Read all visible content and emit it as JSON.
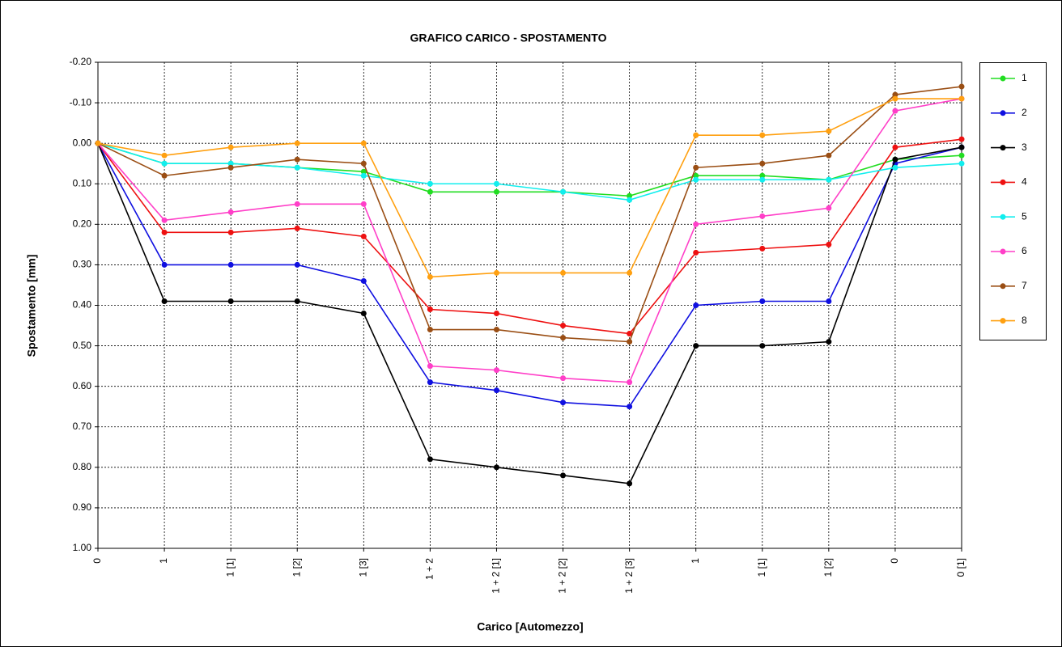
{
  "chart_data": {
    "type": "line",
    "title": "GRAFICO CARICO - SPOSTAMENTO",
    "x_label": "Carico [Automezzo]",
    "y_label": "Spostamento [mm]",
    "categories": [
      "0",
      "1",
      "1 [1]",
      "1 [2]",
      "1 [3]",
      "1 + 2",
      "1 + 2 [1]",
      "1 + 2 [2]",
      "1 + 2 [3]",
      "1",
      "1 [1]",
      "1 [2]",
      "0",
      "0 [1]"
    ],
    "ylim": [
      -0.2,
      1
    ],
    "y_inverted": true,
    "yticks": [
      {
        "value": -0.2,
        "label": "-0.20"
      },
      {
        "value": -0.1,
        "label": "-0.10"
      },
      {
        "value": 0,
        "label": "0.00"
      },
      {
        "value": 0.1,
        "label": "0.10"
      },
      {
        "value": 0.2,
        "label": "0.20"
      },
      {
        "value": 0.3,
        "label": "0.30"
      },
      {
        "value": 0.4,
        "label": "0.40"
      },
      {
        "value": 0.5,
        "label": "0.50"
      },
      {
        "value": 0.6,
        "label": "0.60"
      },
      {
        "value": 0.7,
        "label": "0.70"
      },
      {
        "value": 0.8,
        "label": "0.80"
      },
      {
        "value": 0.9,
        "label": "0.90"
      },
      {
        "value": 1,
        "label": "1.00"
      }
    ],
    "grid": true,
    "legend": "right",
    "series": [
      {
        "name": "1",
        "color": "#22dd22",
        "values": [
          0,
          0.05,
          0.05,
          0.06,
          0.07,
          0.12,
          0.12,
          0.12,
          0.13,
          0.08,
          0.08,
          0.09,
          0.04,
          0.03
        ]
      },
      {
        "name": "2",
        "color": "#1010e0",
        "values": [
          0,
          0.3,
          0.3,
          0.3,
          0.34,
          0.59,
          0.61,
          0.64,
          0.65,
          0.4,
          0.39,
          0.39,
          0.05,
          0.01
        ]
      },
      {
        "name": "3",
        "color": "#000000",
        "values": [
          0,
          0.39,
          0.39,
          0.39,
          0.42,
          0.78,
          0.8,
          0.82,
          0.84,
          0.5,
          0.5,
          0.49,
          0.04,
          0.01
        ]
      },
      {
        "name": "4",
        "color": "#ee1111",
        "values": [
          0,
          0.22,
          0.22,
          0.21,
          0.23,
          0.41,
          0.42,
          0.45,
          0.47,
          0.27,
          0.26,
          0.25,
          0.01,
          -0.01
        ]
      },
      {
        "name": "5",
        "color": "#11eeee",
        "values": [
          0,
          0.05,
          0.05,
          0.06,
          0.08,
          0.1,
          0.1,
          0.12,
          0.14,
          0.09,
          0.09,
          0.09,
          0.06,
          0.05
        ]
      },
      {
        "name": "6",
        "color": "#ff3fc8",
        "values": [
          0,
          0.19,
          0.17,
          0.15,
          0.15,
          0.55,
          0.56,
          0.58,
          0.59,
          0.2,
          0.18,
          0.16,
          -0.08,
          -0.11
        ]
      },
      {
        "name": "7",
        "color": "#9a4e14",
        "values": [
          0,
          0.08,
          0.06,
          0.04,
          0.05,
          0.46,
          0.46,
          0.48,
          0.49,
          0.06,
          0.05,
          0.03,
          -0.12,
          -0.14
        ]
      },
      {
        "name": "8",
        "color": "#ffa010",
        "values": [
          0,
          0.03,
          0.01,
          0.0,
          0.0,
          0.33,
          0.32,
          0.32,
          0.32,
          -0.02,
          -0.02,
          -0.03,
          -0.11,
          -0.11
        ]
      }
    ]
  }
}
